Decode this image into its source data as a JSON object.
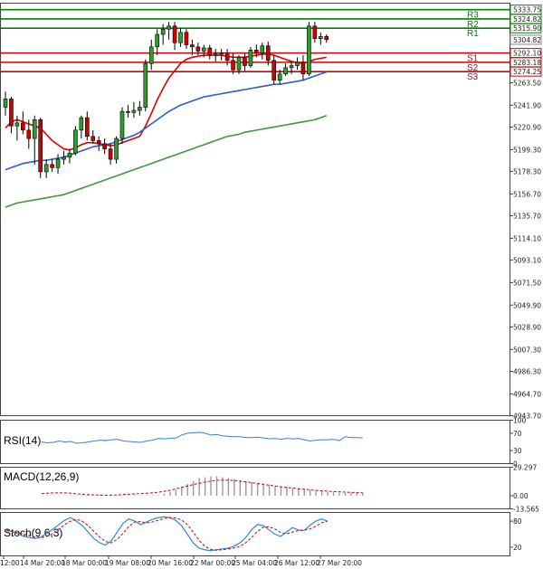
{
  "chart_data": {
    "type": "candlestick",
    "instrument_timeframe": "H4",
    "price_axis": {
      "ticks": [
        "5304.82",
        "5263.50",
        "5241.90",
        "5220.90",
        "5199.30",
        "5178.30",
        "5156.70",
        "5135.70",
        "5114.10",
        "5093.10",
        "5071.50",
        "5049.90",
        "5028.90",
        "5007.30",
        "4986.30",
        "4964.70",
        "4943.70"
      ],
      "current_price": "5304.82",
      "ylim": [
        4943.7,
        5340
      ]
    },
    "time_axis": {
      "labels": [
        "12:00",
        "14 Mar 20:00",
        "18 Mar 00:00",
        "19 Mar 08:00",
        "20 Mar 16:00",
        "22 Mar 00:00",
        "25 Mar 04:00",
        "26 Mar 12:00",
        "27 Mar 20:00"
      ]
    },
    "pivot_levels": [
      {
        "label": "R3",
        "value": "5333.75",
        "color": "#008000"
      },
      {
        "label": "R2",
        "value": "5324.82",
        "color": "#008000"
      },
      {
        "label": "R1",
        "value": "5315.90",
        "color": "#008000"
      },
      {
        "label": "S1",
        "value": "5292.10",
        "color": "#d00000"
      },
      {
        "label": "S2",
        "value": "5283.18",
        "color": "#d00000"
      },
      {
        "label": "S3",
        "value": "5274.25",
        "color": "#d00000"
      }
    ],
    "candles": [
      [
        5240,
        5255,
        5232,
        5248
      ],
      [
        5248,
        5250,
        5215,
        5222
      ],
      [
        5222,
        5232,
        5208,
        5225
      ],
      [
        5225,
        5236,
        5214,
        5218
      ],
      [
        5218,
        5228,
        5200,
        5210
      ],
      [
        5210,
        5232,
        5185,
        5228
      ],
      [
        5228,
        5230,
        5172,
        5178
      ],
      [
        5178,
        5190,
        5172,
        5185
      ],
      [
        5185,
        5190,
        5178,
        5182
      ],
      [
        5182,
        5195,
        5176,
        5190
      ],
      [
        5190,
        5198,
        5185,
        5192
      ],
      [
        5192,
        5200,
        5186,
        5196
      ],
      [
        5196,
        5222,
        5194,
        5218
      ],
      [
        5218,
        5232,
        5210,
        5230
      ],
      [
        5230,
        5236,
        5208,
        5212
      ],
      [
        5212,
        5218,
        5205,
        5208
      ],
      [
        5208,
        5212,
        5198,
        5205
      ],
      [
        5205,
        5210,
        5195,
        5200
      ],
      [
        5200,
        5205,
        5185,
        5190
      ],
      [
        5190,
        5212,
        5186,
        5210
      ],
      [
        5210,
        5240,
        5205,
        5236
      ],
      [
        5236,
        5242,
        5230,
        5235
      ],
      [
        5235,
        5245,
        5230,
        5237
      ],
      [
        5237,
        5246,
        5232,
        5240
      ],
      [
        5240,
        5286,
        5236,
        5282
      ],
      [
        5282,
        5305,
        5276,
        5298
      ],
      [
        5298,
        5315,
        5290,
        5310
      ],
      [
        5310,
        5320,
        5300,
        5315
      ],
      [
        5315,
        5322,
        5305,
        5318
      ],
      [
        5318,
        5322,
        5295,
        5302
      ],
      [
        5302,
        5316,
        5298,
        5312
      ],
      [
        5312,
        5315,
        5296,
        5300
      ],
      [
        5300,
        5305,
        5290,
        5298
      ],
      [
        5298,
        5302,
        5290,
        5294
      ],
      [
        5294,
        5300,
        5288,
        5297
      ],
      [
        5297,
        5300,
        5286,
        5290
      ],
      [
        5290,
        5296,
        5284,
        5291
      ],
      [
        5291,
        5296,
        5285,
        5292
      ],
      [
        5292,
        5296,
        5280,
        5285
      ],
      [
        5285,
        5292,
        5272,
        5276
      ],
      [
        5276,
        5290,
        5272,
        5288
      ],
      [
        5288,
        5292,
        5275,
        5280
      ],
      [
        5280,
        5298,
        5278,
        5295
      ],
      [
        5295,
        5300,
        5288,
        5292
      ],
      [
        5292,
        5302,
        5286,
        5299
      ],
      [
        5299,
        5303,
        5280,
        5285
      ],
      [
        5285,
        5290,
        5262,
        5266
      ],
      [
        5266,
        5276,
        5262,
        5272
      ],
      [
        5272,
        5282,
        5270,
        5278
      ],
      [
        5278,
        5284,
        5272,
        5280
      ],
      [
        5280,
        5288,
        5276,
        5283
      ],
      [
        5283,
        5290,
        5266,
        5272
      ],
      [
        5272,
        5322,
        5270,
        5318
      ],
      [
        5318,
        5322,
        5302,
        5306
      ],
      [
        5306,
        5312,
        5300,
        5308
      ],
      [
        5308,
        5310,
        5302,
        5305
      ]
    ],
    "moving_averages": [
      {
        "name": "MA fast",
        "color": "#e00000",
        "values": [
          5220,
          5226,
          5228,
          5226,
          5224,
          5222,
          5220,
          5214,
          5208,
          5204,
          5200,
          5199,
          5201,
          5204,
          5206,
          5206,
          5205,
          5204,
          5203,
          5204,
          5206,
          5208,
          5210,
          5212,
          5222,
          5234,
          5247,
          5258,
          5268,
          5275,
          5282,
          5286,
          5288,
          5289,
          5290,
          5290,
          5290,
          5290,
          5289,
          5288,
          5288,
          5288,
          5289,
          5290,
          5291,
          5291,
          5290,
          5288,
          5286,
          5284,
          5283,
          5282,
          5284,
          5286,
          5287,
          5288
        ]
      },
      {
        "name": "MA medium",
        "color": "#2a5bd7",
        "values": [
          5180,
          5182,
          5184,
          5186,
          5187,
          5188,
          5189,
          5189,
          5190,
          5191,
          5192,
          5194,
          5196,
          5198,
          5200,
          5202,
          5203,
          5204,
          5205,
          5207,
          5209,
          5211,
          5213,
          5216,
          5220,
          5224,
          5228,
          5232,
          5236,
          5239,
          5242,
          5244,
          5246,
          5248,
          5250,
          5251,
          5252,
          5253,
          5254,
          5255,
          5256,
          5257,
          5258,
          5259,
          5260,
          5261,
          5262,
          5262,
          5263,
          5264,
          5265,
          5266,
          5268,
          5270,
          5272,
          5274
        ]
      },
      {
        "name": "MA slow",
        "color": "#3a9a3a",
        "values": [
          5144,
          5146,
          5148,
          5149,
          5150,
          5151,
          5152,
          5153,
          5154,
          5155,
          5156,
          5158,
          5160,
          5162,
          5164,
          5166,
          5168,
          5170,
          5172,
          5174,
          5176,
          5178,
          5180,
          5182,
          5184,
          5186,
          5188,
          5190,
          5192,
          5194,
          5196,
          5198,
          5200,
          5202,
          5204,
          5206,
          5208,
          5210,
          5212,
          5213,
          5214,
          5216,
          5217,
          5218,
          5219,
          5220,
          5221,
          5222,
          5223,
          5224,
          5225,
          5226,
          5227,
          5228,
          5230,
          5232
        ]
      }
    ],
    "rsi": {
      "label": "RSI(14)",
      "ticks": [
        "100",
        "70",
        "30",
        "0"
      ],
      "values": [
        50,
        48,
        49,
        52,
        50,
        51,
        47,
        48,
        50,
        52,
        54,
        53,
        55,
        56,
        52,
        51,
        50,
        49,
        52,
        54,
        58,
        57,
        58,
        59,
        66,
        70,
        71,
        72,
        70,
        66,
        67,
        64,
        63,
        62,
        62,
        60,
        60,
        61,
        59,
        57,
        58,
        56,
        58,
        57,
        58,
        55,
        52,
        54,
        55,
        55,
        56,
        53,
        62,
        60,
        60,
        59
      ]
    },
    "macd": {
      "label": "MACD(12,26,9)",
      "ticks": [
        "29.297",
        "0.00",
        "-13.565"
      ],
      "histogram": [
        0.5,
        0.5,
        0.5,
        0.5,
        0.5,
        0.5,
        0.5,
        0.5,
        0.5,
        0.5,
        0.5,
        0.5,
        0.5,
        0.5,
        0.5,
        0.5,
        0.5,
        0.5,
        0.5,
        0.5,
        0.5,
        2,
        4,
        6,
        9,
        12,
        15,
        18,
        19,
        20,
        20,
        19,
        18,
        17,
        16,
        15,
        14,
        13,
        12,
        11,
        10,
        9,
        9,
        8,
        7,
        7,
        6,
        5,
        5,
        4,
        4,
        3,
        3,
        3,
        3,
        3
      ],
      "signal": [
        2,
        2.5,
        2.8,
        2.9,
        2.8,
        2.5,
        2,
        1.5,
        1,
        0.8,
        0.6,
        0.5,
        0.6,
        0.8,
        1.2,
        1.5,
        1.8,
        2.1,
        2.5,
        3,
        3.6,
        4.5,
        5.5,
        7,
        8.5,
        10,
        11.5,
        12.8,
        14,
        15,
        15.8,
        16,
        16,
        15.6,
        15,
        14.2,
        13.4,
        12.5,
        11.7,
        10.8,
        10,
        9.2,
        8.5,
        7.8,
        7.2,
        6.6,
        6,
        5.5,
        5,
        4.6,
        4.3,
        4,
        3.7,
        3.4,
        3.2,
        3
      ]
    },
    "stoch": {
      "label": "Stoch(9,6,3)",
      "ticks": [
        "80",
        "20"
      ],
      "main": [
        60,
        55,
        50,
        45,
        42,
        40,
        44,
        52,
        62,
        72,
        82,
        88,
        80,
        70,
        55,
        40,
        30,
        25,
        35,
        55,
        75,
        85,
        80,
        72,
        78,
        84,
        88,
        90,
        88,
        82,
        70,
        50,
        30,
        18,
        14,
        12,
        14,
        16,
        18,
        22,
        30,
        42,
        60,
        72,
        70,
        60,
        50,
        45,
        55,
        65,
        60,
        58,
        70,
        80,
        85,
        80
      ],
      "signal": [
        58,
        57,
        53,
        50,
        46,
        43,
        42,
        45,
        52,
        62,
        72,
        80,
        84,
        80,
        70,
        56,
        43,
        33,
        30,
        38,
        52,
        68,
        78,
        79,
        76,
        78,
        82,
        86,
        88,
        87,
        83,
        72,
        55,
        36,
        22,
        15,
        13,
        14,
        16,
        18,
        22,
        30,
        42,
        56,
        66,
        67,
        62,
        54,
        51,
        55,
        58,
        60,
        62,
        68,
        76,
        80
      ]
    }
  }
}
